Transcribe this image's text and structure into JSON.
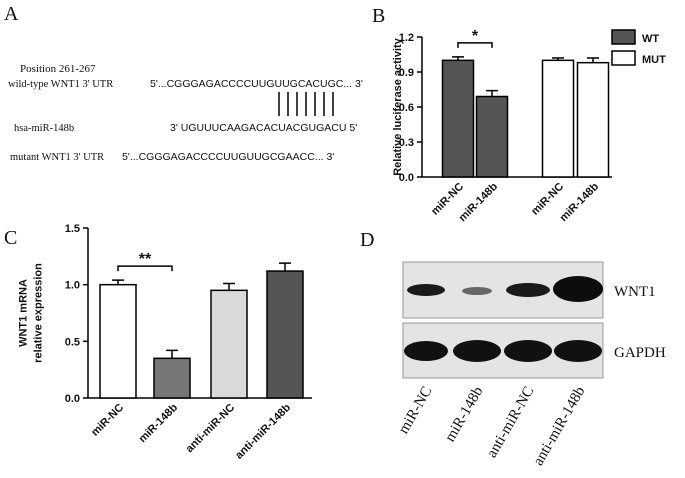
{
  "panels": {
    "labels": [
      "A",
      "B",
      "C",
      "D"
    ],
    "a": {
      "position": "Position 261-267",
      "rows": [
        {
          "label": "wild-type WNT1 3' UTR",
          "sequence": "5'...CGGGAGACCCCUUGUUGCACUGC... 3'"
        },
        {
          "label": "hsa-miR-148b",
          "sequence": "3' UGUUUCAAGACACUACGUGACU  5'"
        },
        {
          "label": "mutant WNT1 3' UTR",
          "sequence": "5'...CGGGAGACCCCUUGUUGCGAACC... 3'"
        }
      ]
    },
    "d": {
      "bands": [
        "WNT1",
        "GAPDH"
      ],
      "lanes": [
        "miR-NC",
        "miR-148b",
        "anti-miR-NC",
        "anti-miR-148b"
      ]
    }
  },
  "chart_data": [
    {
      "type": "bar",
      "ylabel": [
        "Relative luciferase activity"
      ],
      "categories": [
        "miR-NC",
        "miR-148b",
        "miR-NC",
        "miR-148b"
      ],
      "series": [
        {
          "name": "WT",
          "color": "#555555",
          "values": [
            1.0,
            0.69,
            null,
            null
          ],
          "errors": [
            0.03,
            0.05,
            null,
            null
          ]
        },
        {
          "name": "MUT",
          "color": "#ffffff",
          "values": [
            null,
            null,
            1.0,
            0.98
          ],
          "errors": [
            null,
            null,
            0.02,
            0.04
          ]
        }
      ],
      "ylim": [
        0,
        1.2
      ],
      "yticks": [
        {
          "value": 0,
          "label": "0.0"
        },
        0.3,
        0.6,
        0.9,
        1.2
      ],
      "annotations": [
        "*"
      ]
    },
    {
      "type": "bar",
      "ylabel": [
        "WNT1 mRNA",
        "relative expression"
      ],
      "categories": [
        "miR-NC",
        "miR-148b",
        "anti-miR-NC",
        "anti-miR-148b"
      ],
      "values": [
        1.0,
        0.35,
        0.95,
        1.12
      ],
      "errors": [
        0.04,
        0.07,
        0.06,
        0.07
      ],
      "colors": [
        "#ffffff",
        "#777777",
        "#d9d9d9",
        "#555555"
      ],
      "ylim": [
        0,
        1.5
      ],
      "yticks": [
        {
          "value": 0,
          "label": "0.0"
        },
        0.5,
        {
          "value": 1,
          "label": "1.0"
        },
        1.5
      ],
      "annotations": [
        "**"
      ]
    }
  ]
}
